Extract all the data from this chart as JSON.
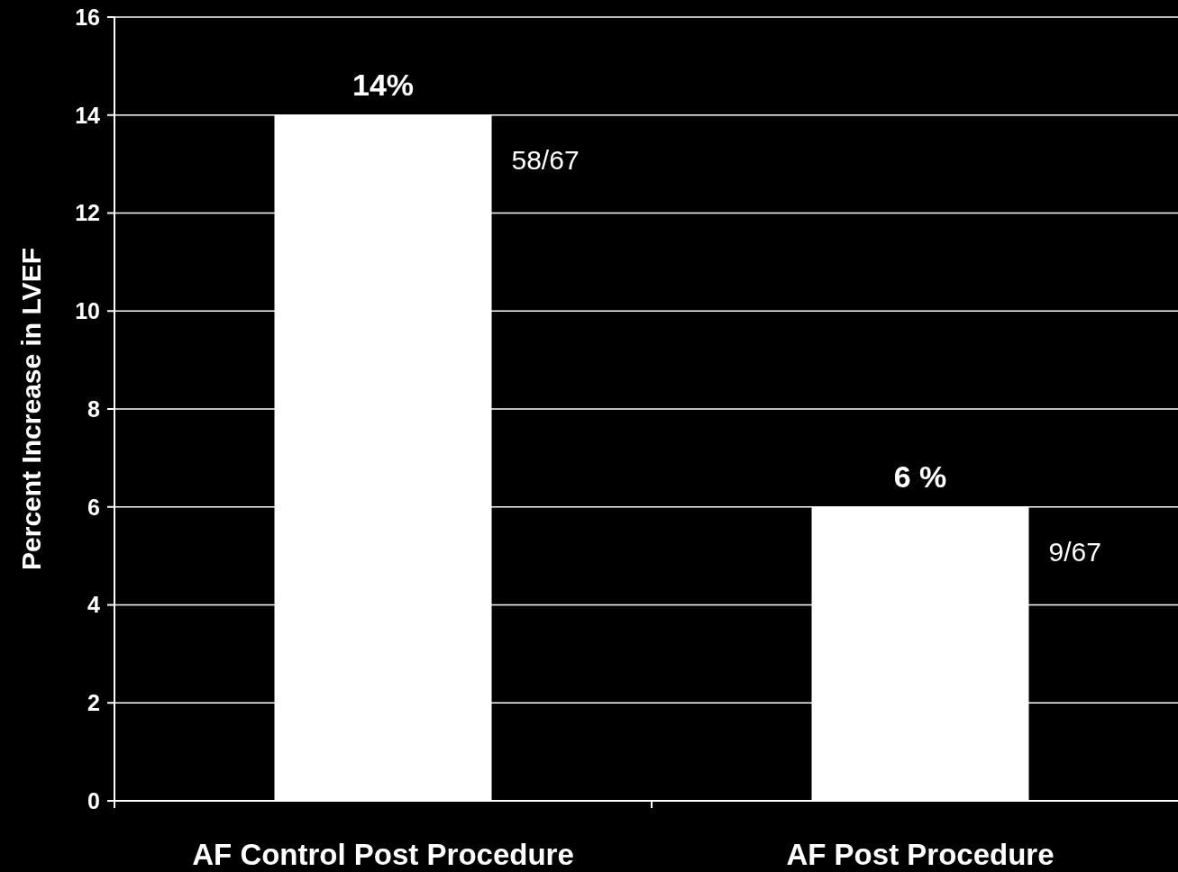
{
  "chart_data": {
    "type": "bar",
    "ylabel": "Percent Increase in LVEF",
    "categories": [
      "AF Control Post Procedure",
      "AF Post Procedure"
    ],
    "values": [
      14,
      6
    ],
    "color": "#ffffff",
    "value_labels": [
      "14%",
      "6 %"
    ],
    "ylim": [
      0,
      16
    ],
    "yticks": [
      0,
      2,
      4,
      6,
      8,
      10,
      12,
      14,
      16
    ],
    "grid": "y",
    "annotations": [
      "58/67",
      "9/67"
    ]
  }
}
